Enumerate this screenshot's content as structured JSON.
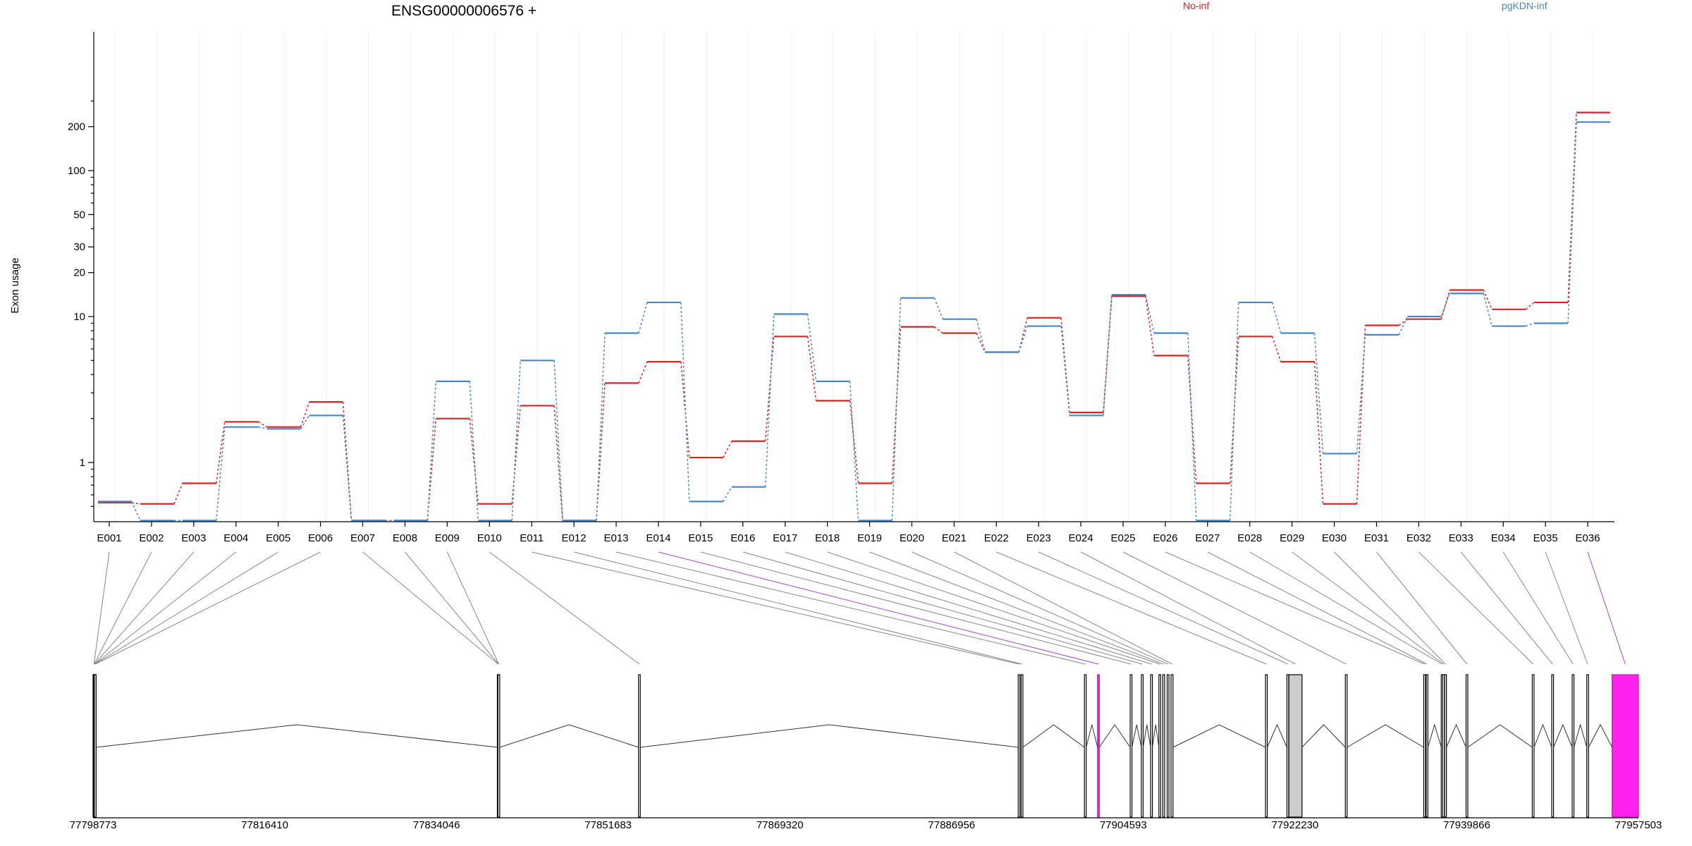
{
  "chart_data": {
    "type": "line",
    "title": "ENSG00000006576 +",
    "ylabel": "Exon usage",
    "y_scale": "log",
    "y_ticks": [
      "1",
      "10",
      "20",
      "30",
      "50",
      "100",
      "200"
    ],
    "grid": "vertical",
    "legend": "top",
    "categories": [
      "E001",
      "E002",
      "E003",
      "E004",
      "E005",
      "E006",
      "E007",
      "E008",
      "E009",
      "E010",
      "E011",
      "E012",
      "E013",
      "E014",
      "E015",
      "E016",
      "E017",
      "E018",
      "E019",
      "E020",
      "E021",
      "E022",
      "E023",
      "E024",
      "E025",
      "E026",
      "E027",
      "E028",
      "E029",
      "E030",
      "E031",
      "E032",
      "E033",
      "E034",
      "E035",
      "E036"
    ],
    "series": [
      {
        "name": "No-inf",
        "color": "#dd2222",
        "values": [
          0.53,
          0.52,
          0.72,
          1.9,
          1.75,
          2.6,
          0.4,
          0.4,
          2.0,
          0.52,
          2.45,
          0.4,
          3.5,
          4.9,
          1.08,
          1.4,
          7.3,
          2.65,
          0.72,
          8.5,
          7.7,
          5.7,
          9.8,
          2.2,
          13.8,
          5.4,
          0.72,
          7.3,
          4.9,
          0.52,
          8.7,
          9.6,
          15.2,
          11.2,
          12.5,
          250
        ]
      },
      {
        "name": "pgKDN-inf",
        "color": "#4488cc",
        "values": [
          0.54,
          0.4,
          0.4,
          1.75,
          1.7,
          2.1,
          0.4,
          0.4,
          3.6,
          0.4,
          5.0,
          0.4,
          7.7,
          12.5,
          0.54,
          0.68,
          10.4,
          3.6,
          0.4,
          13.4,
          9.6,
          5.7,
          8.6,
          2.1,
          14.1,
          7.7,
          0.4,
          12.5,
          7.7,
          1.15,
          7.5,
          10.0,
          14.4,
          8.6,
          9.0,
          215
        ]
      }
    ],
    "gene_model": {
      "coordinate_labels": [
        "77798773",
        "77816410",
        "77834046",
        "77851683",
        "77869320",
        "77886956",
        "77904593",
        "77922230",
        "77939866",
        "77957503"
      ],
      "start": 77798773,
      "end": 77957503,
      "highlight_color": "#ff22ee",
      "highlighted_exons": [
        "E014",
        "E036"
      ],
      "exon_coords": [
        [
          77798773,
          77798800
        ],
        [
          77798800,
          77798830
        ],
        [
          77798830,
          77798855
        ],
        [
          77798855,
          77798880
        ],
        [
          77798880,
          77798905
        ],
        [
          77798905,
          77798935
        ],
        [
          77840300,
          77840330
        ],
        [
          77840330,
          77840360
        ],
        [
          77840360,
          77840410
        ],
        [
          77854800,
          77854960
        ],
        [
          77893800,
          77893980
        ],
        [
          77894100,
          77894280
        ],
        [
          77900600,
          77900720
        ],
        [
          77901950,
          77902100
        ],
        [
          77905300,
          77905420
        ],
        [
          77906450,
          77906560
        ],
        [
          77907400,
          77907560
        ],
        [
          77908250,
          77908380
        ],
        [
          77908650,
          77908800
        ],
        [
          77909100,
          77909260
        ],
        [
          77909500,
          77909700
        ],
        [
          77919200,
          77919380
        ],
        [
          77921400,
          77921520
        ],
        [
          77921600,
          77922950
        ],
        [
          77927400,
          77927560
        ],
        [
          77935450,
          77935580
        ],
        [
          77935700,
          77935800
        ],
        [
          77937250,
          77937380
        ],
        [
          77937400,
          77937520
        ],
        [
          77937600,
          77937760
        ],
        [
          77939800,
          77939960
        ],
        [
          77946600,
          77946780
        ],
        [
          77948600,
          77948760
        ],
        [
          77950700,
          77950860
        ],
        [
          77952200,
          77952360
        ],
        [
          77954800,
          77957503
        ]
      ]
    }
  }
}
